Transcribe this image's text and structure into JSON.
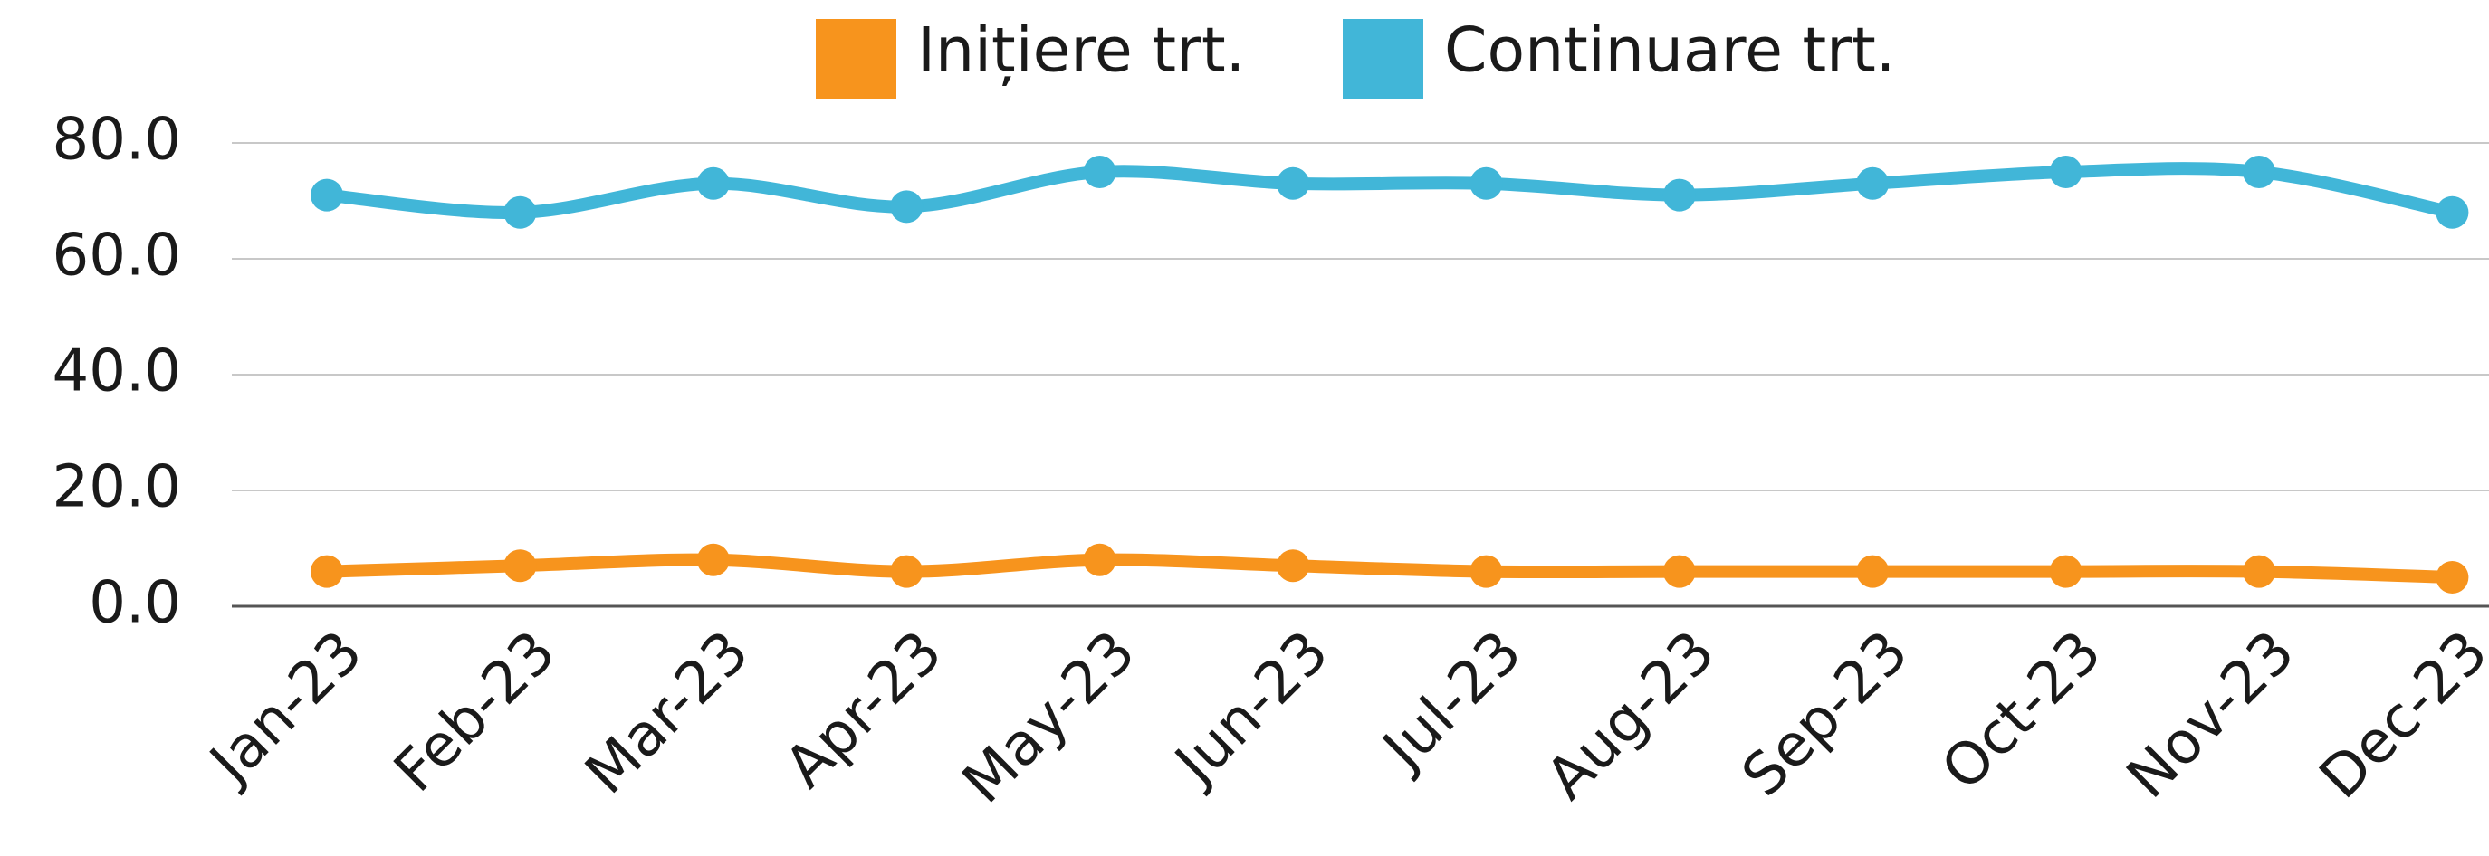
{
  "chart_data": {
    "type": "line",
    "categories": [
      "Jan-23",
      "Feb-23",
      "Mar-23",
      "Apr-23",
      "May-23",
      "Jun-23",
      "Jul-23",
      "Aug-23",
      "Sep-23",
      "Oct-23",
      "Nov-23",
      "Dec-23"
    ],
    "series": [
      {
        "name": "Inițiere trt.",
        "color": "#f7941d",
        "values": [
          6,
          7,
          8,
          6,
          8,
          7,
          6,
          6,
          6,
          6,
          6,
          5
        ]
      },
      {
        "name": "Continuare trt.",
        "color": "#41b6d8",
        "values": [
          71,
          68,
          73,
          69,
          75,
          73,
          73,
          71,
          73,
          75,
          75,
          68
        ]
      }
    ],
    "ylim": [
      0,
      80
    ],
    "yticks": [
      {
        "value": 0,
        "label": "0.0"
      },
      {
        "value": 20,
        "label": "20.0"
      },
      {
        "value": 40,
        "label": "40.0"
      },
      {
        "value": 60,
        "label": "60.0"
      },
      {
        "value": 80,
        "label": "80.0"
      }
    ],
    "grid": true,
    "legend": "top",
    "smooth": true
  }
}
